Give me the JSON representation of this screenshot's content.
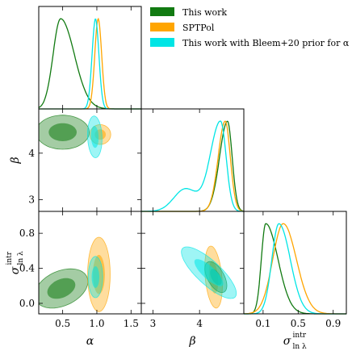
{
  "chart_data": {
    "type": "corner",
    "title": "",
    "legend": {
      "placement": "top-right",
      "entries": [
        {
          "name": "This work",
          "color": "#117a11"
        },
        {
          "name": "SPTPol",
          "color": "#ffa500"
        },
        {
          "name": "This work with Bleem+20 prior for α",
          "color": "#00e5e5"
        }
      ]
    },
    "parameters": [
      {
        "key": "alpha",
        "label": "α",
        "range": [
          0.15,
          1.65
        ],
        "ticks": [
          0.5,
          1.0,
          1.5
        ],
        "tick_labels": [
          "0.5",
          "1.0",
          "1.5"
        ]
      },
      {
        "key": "beta",
        "label": "β",
        "range": [
          2.75,
          4.95
        ],
        "ticks": [
          3,
          4
        ],
        "tick_labels": [
          "3",
          "4"
        ]
      },
      {
        "key": "sigma",
        "label": "σintr ln λ",
        "label_main": "σ",
        "label_sup": "intr",
        "label_sub": "ln λ",
        "range": [
          -0.12,
          1.05
        ],
        "ticks": [
          0.0,
          0.4,
          0.8
        ],
        "tick_labels": [
          "0.0",
          "0.4",
          "0.8"
        ],
        "diag_ticks": [
          0.1,
          0.5,
          0.9
        ],
        "diag_tick_labels": [
          "0.1",
          "0.5",
          "0.9"
        ]
      }
    ],
    "marginals": {
      "alpha": [
        {
          "series": "This work",
          "peak": 0.47,
          "width_left": 0.11,
          "width_right": 0.2
        },
        {
          "series": "SPTPol",
          "peak": 1.02,
          "width_left": 0.05,
          "width_right": 0.05
        },
        {
          "series": "This work with Bleem+20 prior for α",
          "peak": 0.98,
          "width_left": 0.05,
          "width_right": 0.05
        }
      ],
      "beta": [
        {
          "series": "This work",
          "peak": 4.6,
          "width_left": 0.17,
          "width_right": 0.1
        },
        {
          "series": "SPTPol",
          "peak": 4.55,
          "width_left": 0.15,
          "width_right": 0.11
        },
        {
          "series": "This work with Bleem+20 prior for α",
          "peak": 4.45,
          "width_left": 0.22,
          "width_right": 0.12,
          "shoulder": [
            3.7,
            0.25,
            0.25
          ]
        }
      ],
      "sigma": [
        {
          "series": "This work",
          "peak": 0.13,
          "width_left": 0.05,
          "width_right": 0.14
        },
        {
          "series": "SPTPol",
          "peak": 0.33,
          "width_left": 0.12,
          "width_right": 0.15
        },
        {
          "series": "This work with Bleem+20 prior for α",
          "peak": 0.28,
          "width_left": 0.08,
          "width_right": 0.13
        }
      ]
    },
    "joint": {
      "alpha_beta": [
        {
          "series": "This work",
          "cx": 0.5,
          "cy": 4.45,
          "sx": 0.33,
          "sy": 0.31,
          "rho": 0.0
        },
        {
          "series": "SPTPol",
          "cx": 1.05,
          "cy": 4.4,
          "sx": 0.13,
          "sy": 0.18,
          "rho": 0.0
        },
        {
          "series": "This work with Bleem+20 prior for α",
          "cx": 0.97,
          "cy": 4.35,
          "sx": 0.09,
          "sy": 0.38,
          "rho": -0.1
        }
      ],
      "alpha_sigma": [
        {
          "series": "This work",
          "cx": 0.48,
          "cy": 0.17,
          "sx": 0.33,
          "sy": 0.19,
          "rho": 0.35
        },
        {
          "series": "SPTPol",
          "cx": 1.03,
          "cy": 0.33,
          "sx": 0.14,
          "sy": 0.36,
          "rho": 0.0
        },
        {
          "series": "This work with Bleem+20 prior for α",
          "cx": 0.98,
          "cy": 0.3,
          "sx": 0.09,
          "sy": 0.2,
          "rho": 0.0
        }
      ],
      "beta_sigma": [
        {
          "series": "SPTPol",
          "cx": 4.3,
          "cy": 0.3,
          "sx": 0.16,
          "sy": 0.3,
          "rho": -0.3
        },
        {
          "series": "This work",
          "cx": 4.35,
          "cy": 0.3,
          "sx": 0.2,
          "sy": 0.15,
          "rho": -0.55
        },
        {
          "series": "This work with Bleem+20 prior for α",
          "cx": 4.2,
          "cy": 0.35,
          "sx": 0.5,
          "sy": 0.25,
          "rho": -0.8
        }
      ]
    },
    "grid": false
  }
}
